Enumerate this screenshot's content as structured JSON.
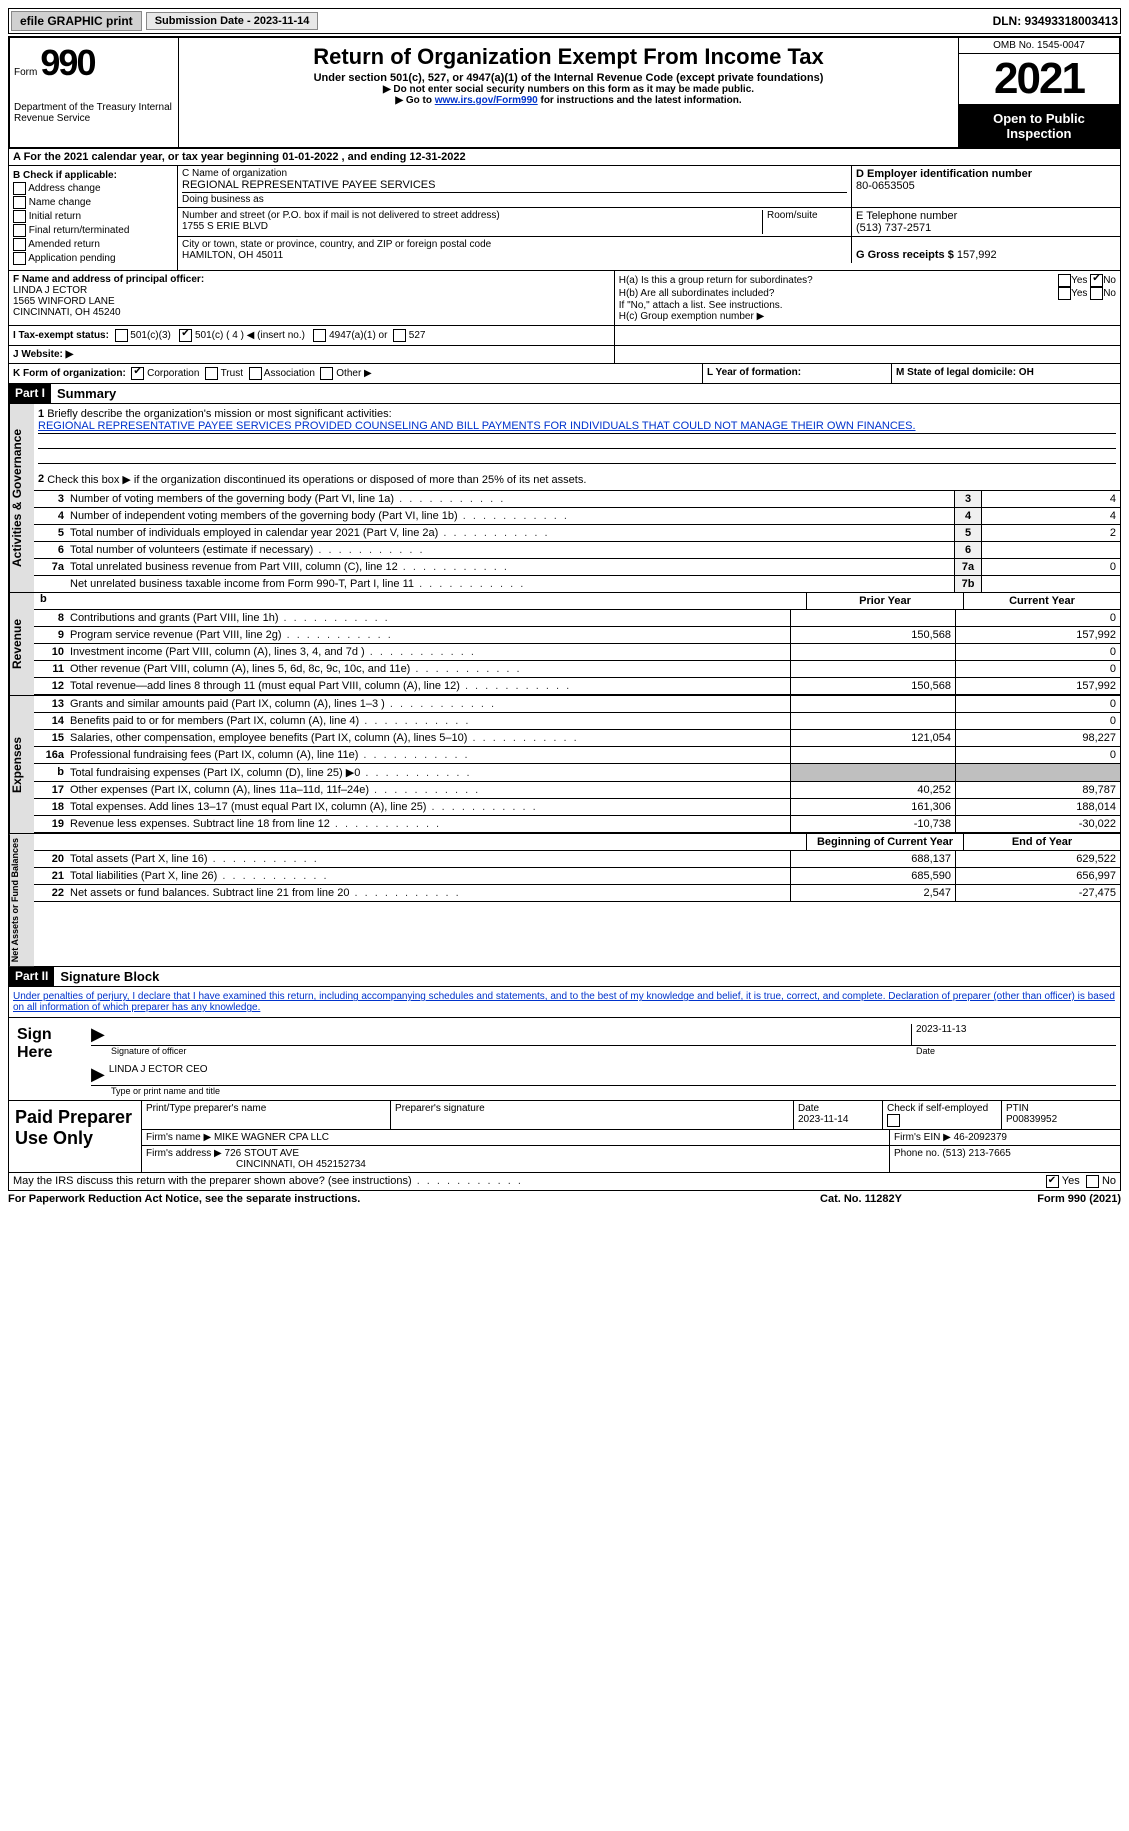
{
  "topBar": {
    "efile": "efile GRAPHIC print",
    "subDateLabel": "Submission Date - 2023-11-14",
    "dln": "DLN: 93493318003413"
  },
  "header": {
    "formWord": "Form",
    "formNum": "990",
    "dept": "Department of the Treasury Internal Revenue Service",
    "title": "Return of Organization Exempt From Income Tax",
    "subtitle": "Under section 501(c), 527, or 4947(a)(1) of the Internal Revenue Code (except private foundations)",
    "note1": "Do not enter social security numbers on this form as it may be made public.",
    "note2Prefix": "Go to ",
    "note2Link": "www.irs.gov/Form990",
    "note2Suffix": " for instructions and the latest information.",
    "omb": "OMB No. 1545-0047",
    "year": "2021",
    "openInspect": "Open to Public Inspection"
  },
  "rowA": "A For the 2021 calendar year, or tax year beginning 01-01-2022   , and ending 12-31-2022",
  "boxB": {
    "label": "B Check if applicable:",
    "opts": [
      "Address change",
      "Name change",
      "Initial return",
      "Final return/terminated",
      "Amended return",
      "Application pending"
    ]
  },
  "boxC": {
    "nameLabel": "C Name of organization",
    "name": "REGIONAL REPRESENTATIVE PAYEE SERVICES",
    "dba": "Doing business as",
    "streetLabel": "Number and street (or P.O. box if mail is not delivered to street address)",
    "roomLabel": "Room/suite",
    "street": "1755 S ERIE BLVD",
    "cityLabel": "City or town, state or province, country, and ZIP or foreign postal code",
    "city": "HAMILTON, OH  45011"
  },
  "boxD": {
    "label": "D Employer identification number",
    "value": "80-0653505"
  },
  "boxE": {
    "label": "E Telephone number",
    "value": "(513) 737-2571"
  },
  "boxG": {
    "label": "G Gross receipts $",
    "value": "157,992"
  },
  "boxF": {
    "label": "F Name and address of principal officer:",
    "name": "LINDA J ECTOR",
    "addr1": "1565 WINFORD LANE",
    "addr2": "CINCINNATI, OH  45240"
  },
  "boxH": {
    "haLabel": "H(a)  Is this a group return for subordinates?",
    "hbLabel": "H(b)  Are all subordinates included?",
    "hbNote": "If \"No,\" attach a list. See instructions.",
    "hcLabel": "H(c)  Group exemption number ▶",
    "yes": "Yes",
    "no": "No"
  },
  "boxI": {
    "label": "I  Tax-exempt status:",
    "o1": "501(c)(3)",
    "o2": "501(c) ( 4 ) ◀ (insert no.)",
    "o3": "4947(a)(1) or",
    "o4": "527"
  },
  "boxJ": "J  Website: ▶",
  "boxK": {
    "label": "K Form of organization:",
    "o1": "Corporation",
    "o2": "Trust",
    "o3": "Association",
    "o4": "Other ▶"
  },
  "boxL": "L Year of formation:",
  "boxM": "M State of legal domicile: OH",
  "part1": {
    "header": "Part I",
    "title": "Summary",
    "line1Label": "Briefly describe the organization's mission or most significant activities:",
    "mission": "REGIONAL REPRESENTATIVE PAYEE SERVICES PROVIDED COUNSELING AND BILL PAYMENTS FOR INDIVIDUALS THAT COULD NOT MANAGE THEIR OWN FINANCES.",
    "line2": "Check this box ▶        if the organization discontinued its operations or disposed of more than 25% of its net assets.",
    "lines": [
      {
        "n": "3",
        "t": "Number of voting members of the governing body (Part VI, line 1a)",
        "box": "3",
        "v": "4"
      },
      {
        "n": "4",
        "t": "Number of independent voting members of the governing body (Part VI, line 1b)",
        "box": "4",
        "v": "4"
      },
      {
        "n": "5",
        "t": "Total number of individuals employed in calendar year 2021 (Part V, line 2a)",
        "box": "5",
        "v": "2"
      },
      {
        "n": "6",
        "t": "Total number of volunteers (estimate if necessary)",
        "box": "6",
        "v": ""
      },
      {
        "n": "7a",
        "t": "Total unrelated business revenue from Part VIII, column (C), line 12",
        "box": "7a",
        "v": "0"
      },
      {
        "n": "",
        "t": "Net unrelated business taxable income from Form 990-T, Part I, line 11",
        "box": "7b",
        "v": ""
      }
    ],
    "colPrior": "Prior Year",
    "colCurrent": "Current Year",
    "revenue": [
      {
        "n": "8",
        "t": "Contributions and grants (Part VIII, line 1h)",
        "p": "",
        "c": "0"
      },
      {
        "n": "9",
        "t": "Program service revenue (Part VIII, line 2g)",
        "p": "150,568",
        "c": "157,992"
      },
      {
        "n": "10",
        "t": "Investment income (Part VIII, column (A), lines 3, 4, and 7d )",
        "p": "",
        "c": "0"
      },
      {
        "n": "11",
        "t": "Other revenue (Part VIII, column (A), lines 5, 6d, 8c, 9c, 10c, and 11e)",
        "p": "",
        "c": "0"
      },
      {
        "n": "12",
        "t": "Total revenue—add lines 8 through 11 (must equal Part VIII, column (A), line 12)",
        "p": "150,568",
        "c": "157,992"
      }
    ],
    "expenses": [
      {
        "n": "13",
        "t": "Grants and similar amounts paid (Part IX, column (A), lines 1–3 )",
        "p": "",
        "c": "0"
      },
      {
        "n": "14",
        "t": "Benefits paid to or for members (Part IX, column (A), line 4)",
        "p": "",
        "c": "0"
      },
      {
        "n": "15",
        "t": "Salaries, other compensation, employee benefits (Part IX, column (A), lines 5–10)",
        "p": "121,054",
        "c": "98,227"
      },
      {
        "n": "16a",
        "t": "Professional fundraising fees (Part IX, column (A), line 11e)",
        "p": "",
        "c": "0"
      },
      {
        "n": "b",
        "t": "Total fundraising expenses (Part IX, column (D), line 25) ▶0",
        "p": "shade",
        "c": "shade"
      },
      {
        "n": "17",
        "t": "Other expenses (Part IX, column (A), lines 11a–11d, 11f–24e)",
        "p": "40,252",
        "c": "89,787"
      },
      {
        "n": "18",
        "t": "Total expenses. Add lines 13–17 (must equal Part IX, column (A), line 25)",
        "p": "161,306",
        "c": "188,014"
      },
      {
        "n": "19",
        "t": "Revenue less expenses. Subtract line 18 from line 12",
        "p": "-10,738",
        "c": "-30,022"
      }
    ],
    "colBegin": "Beginning of Current Year",
    "colEnd": "End of Year",
    "netassets": [
      {
        "n": "20",
        "t": "Total assets (Part X, line 16)",
        "p": "688,137",
        "c": "629,522"
      },
      {
        "n": "21",
        "t": "Total liabilities (Part X, line 26)",
        "p": "685,590",
        "c": "656,997"
      },
      {
        "n": "22",
        "t": "Net assets or fund balances. Subtract line 21 from line 20",
        "p": "2,547",
        "c": "-27,475"
      }
    ],
    "vtab1": "Activities & Governance",
    "vtab2": "Revenue",
    "vtab3": "Expenses",
    "vtab4": "Net Assets or Fund Balances"
  },
  "part2": {
    "header": "Part II",
    "title": "Signature Block",
    "decl": "Under penalties of perjury, I declare that I have examined this return, including accompanying schedules and statements, and to the best of my knowledge and belief, it is true, correct, and complete. Declaration of preparer (other than officer) is based on all information of which preparer has any knowledge.",
    "signHere": "Sign Here",
    "sigOfOfficer": "Signature of officer",
    "sigDate": "2023-11-13",
    "dateLabel": "Date",
    "printedName": "LINDA J ECTOR CEO",
    "printedLabel": "Type or print name and title"
  },
  "paid": {
    "label": "Paid Preparer Use Only",
    "h1": "Print/Type preparer's name",
    "h2": "Preparer's signature",
    "h3": "Date",
    "h3v": "2023-11-14",
    "h4": "Check         if self-employed",
    "h5": "PTIN",
    "h5v": "P00839952",
    "firmNameLabel": "Firm's name      ▶",
    "firmName": "MIKE WAGNER CPA LLC",
    "firmEinLabel": "Firm's EIN ▶",
    "firmEin": "46-2092379",
    "firmAddrLabel": "Firm's address ▶",
    "firmAddr1": "726 STOUT AVE",
    "firmAddr2": "CINCINNATI, OH  452152734",
    "phoneLabel": "Phone no.",
    "phone": "(513) 213-7665"
  },
  "footer": {
    "discuss": "May the IRS discuss this return with the preparer shown above? (see instructions)",
    "yes": "Yes",
    "no": "No",
    "paperwork": "For Paperwork Reduction Act Notice, see the separate instructions.",
    "cat": "Cat. No. 11282Y",
    "formRef": "Form 990 (2021)"
  }
}
